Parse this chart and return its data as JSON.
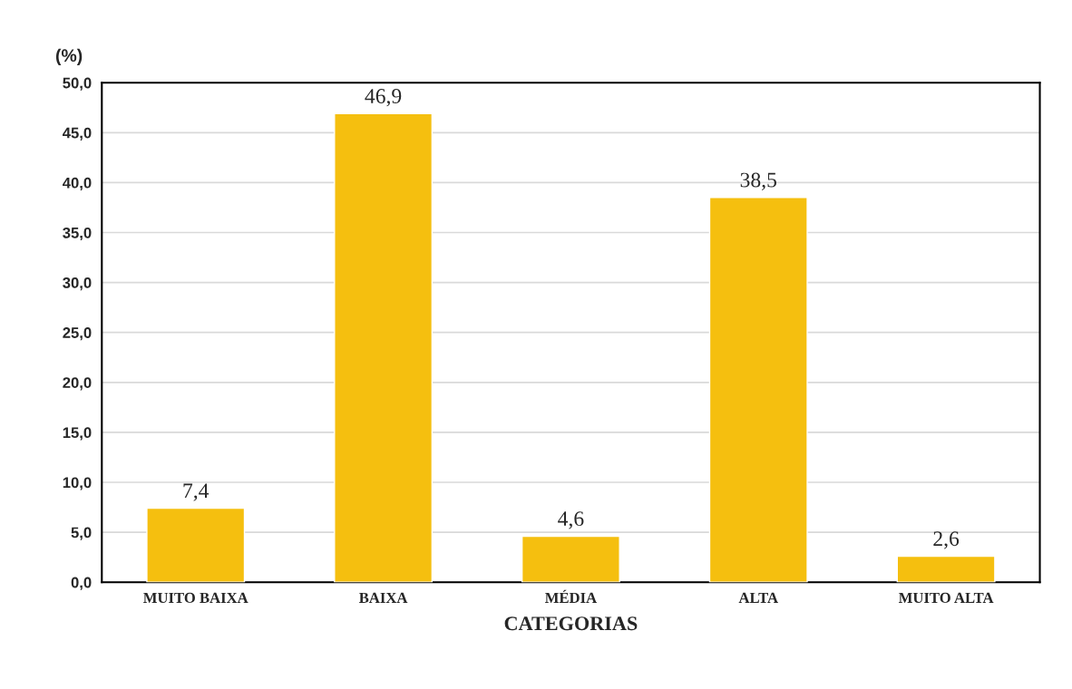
{
  "chart_data": {
    "type": "bar",
    "ylabel": "(%)",
    "xlabel": "CATEGORIAS",
    "categories": [
      "MUITO BAIXA",
      "BAIXA",
      "MÉDIA",
      "ALTA",
      "MUITO ALTA"
    ],
    "values": [
      7.4,
      46.9,
      4.6,
      38.5,
      2.6
    ],
    "value_labels": [
      "7,4",
      "46,9",
      "4,6",
      "38,5",
      "2,6"
    ],
    "color": "#f5bf0f",
    "ylim": [
      0,
      50
    ],
    "yticks": [
      {
        "value": 0,
        "label": "0,0"
      },
      {
        "value": 5,
        "label": "5,0"
      },
      {
        "value": 10,
        "label": "10,0"
      },
      {
        "value": 15,
        "label": "15,0"
      },
      {
        "value": 20,
        "label": "20,0"
      },
      {
        "value": 25,
        "label": "25,0"
      },
      {
        "value": 30,
        "label": "30,0"
      },
      {
        "value": 35,
        "label": "35,0"
      },
      {
        "value": 40,
        "label": "40,0"
      },
      {
        "value": 45,
        "label": "45,0"
      },
      {
        "value": 50,
        "label": "50,0"
      }
    ],
    "grid": "y",
    "legend": false
  }
}
